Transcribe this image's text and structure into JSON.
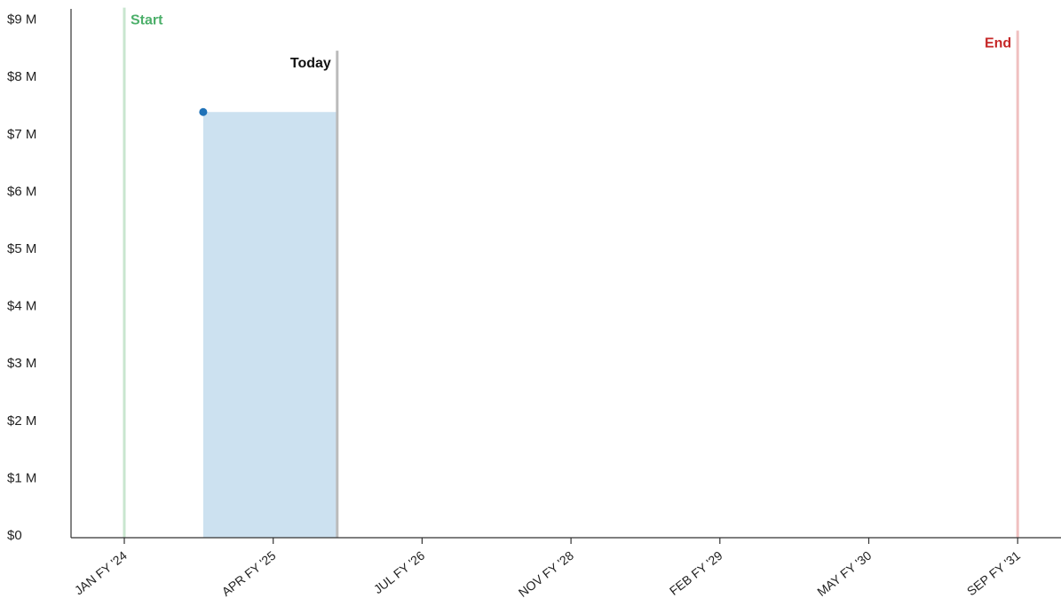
{
  "chart_data": {
    "type": "area",
    "y_ticks": [
      "$0",
      "$1 M",
      "$2 M",
      "$3 M",
      "$4 M",
      "$5 M",
      "$6 M",
      "$7 M",
      "$8 M",
      "$9 M"
    ],
    "y_tick_values": [
      0,
      1,
      2,
      3,
      4,
      5,
      6,
      7,
      8,
      9
    ],
    "ylim": [
      0,
      9.2
    ],
    "x_ticks": [
      "JAN FY '24",
      "APR FY '25",
      "JUL FY '26",
      "NOV FY '28",
      "FEB FY '29",
      "MAY FY '30",
      "SEP FY '31"
    ],
    "x_tick_positions": [
      0,
      1,
      2,
      3,
      4,
      5,
      6
    ],
    "xlim": [
      -0.36,
      6.3
    ],
    "series": [
      {
        "x_start": 0.53,
        "x_end": 1.43,
        "value": 7.38
      }
    ],
    "point": {
      "x": 0.53,
      "y": 7.38
    },
    "markers": [
      {
        "label": "Start",
        "x": 0,
        "color": "#4caf6a",
        "line_color": "#c9e6cf",
        "y_top": 9.2,
        "label_y": 9.0,
        "anchor": "start"
      },
      {
        "label": "Today",
        "x": 1.43,
        "color": "#111111",
        "line_color": "#bbbbbb",
        "y_top": 8.45,
        "label_y": 8.25,
        "anchor": "end"
      },
      {
        "label": "End",
        "x": 6,
        "color": "#c62828",
        "line_color": "#f0c0c0",
        "y_top": 8.8,
        "label_y": 8.6,
        "anchor": "end"
      }
    ],
    "colors": {
      "fill": "#cce1f0",
      "point": "#1f72b8",
      "axis": "#333333"
    },
    "grid": false
  }
}
